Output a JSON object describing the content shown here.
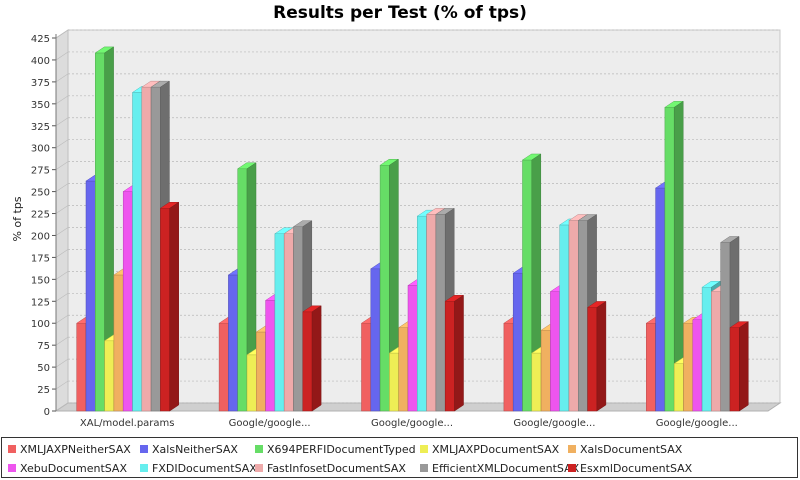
{
  "chart_data": {
    "type": "bar",
    "title": "Results per Test (% of tps)",
    "ylabel": "% of tps",
    "xlabel": "",
    "ylim": [
      0,
      425
    ],
    "yticks": [
      0,
      25,
      50,
      75,
      100,
      125,
      150,
      175,
      200,
      225,
      250,
      275,
      300,
      325,
      350,
      375,
      400,
      425
    ],
    "categories": [
      "XAL/model.params",
      "Google/google...",
      "Google/google...",
      "Google/google...",
      "Google/google..."
    ],
    "grid": "dashed horizontal gridlines",
    "style": "3d bars",
    "legend_position": "bottom",
    "series": [
      {
        "name": "XMLJAXPNeitherSAX",
        "color": "#f06060",
        "values": [
          100,
          100,
          100,
          100,
          100
        ]
      },
      {
        "name": "XalsNeitherSAX",
        "color": "#6666ee",
        "values": [
          262,
          155,
          162,
          157,
          254
        ]
      },
      {
        "name": "X694PERFIDocumentTyped",
        "color": "#66dd66",
        "values": [
          408,
          276,
          280,
          286,
          346
        ]
      },
      {
        "name": "XMLJAXPDocumentSAX",
        "color": "#eeee55",
        "values": [
          80,
          64,
          66,
          66,
          54
        ]
      },
      {
        "name": "XalsDocumentSAX",
        "color": "#f0b060",
        "values": [
          155,
          90,
          95,
          92,
          100
        ]
      },
      {
        "name": "XebuDocumentSAX",
        "color": "#ee55ee",
        "values": [
          250,
          126,
          143,
          136,
          104
        ]
      },
      {
        "name": "FXDIDocumentSAX",
        "color": "#66eeee",
        "values": [
          363,
          202,
          222,
          212,
          141
        ]
      },
      {
        "name": "FastInfosetDocumentSAX",
        "color": "#eeaaaa",
        "values": [
          369,
          202,
          224,
          217,
          136
        ]
      },
      {
        "name": "EfficientXMLDocumentSAX",
        "color": "#999999",
        "values": [
          369,
          210,
          224,
          217,
          192
        ]
      },
      {
        "name": "EsxmlDocumentSAX",
        "color": "#cc2222",
        "values": [
          231,
          113,
          125,
          118,
          95
        ]
      }
    ]
  }
}
